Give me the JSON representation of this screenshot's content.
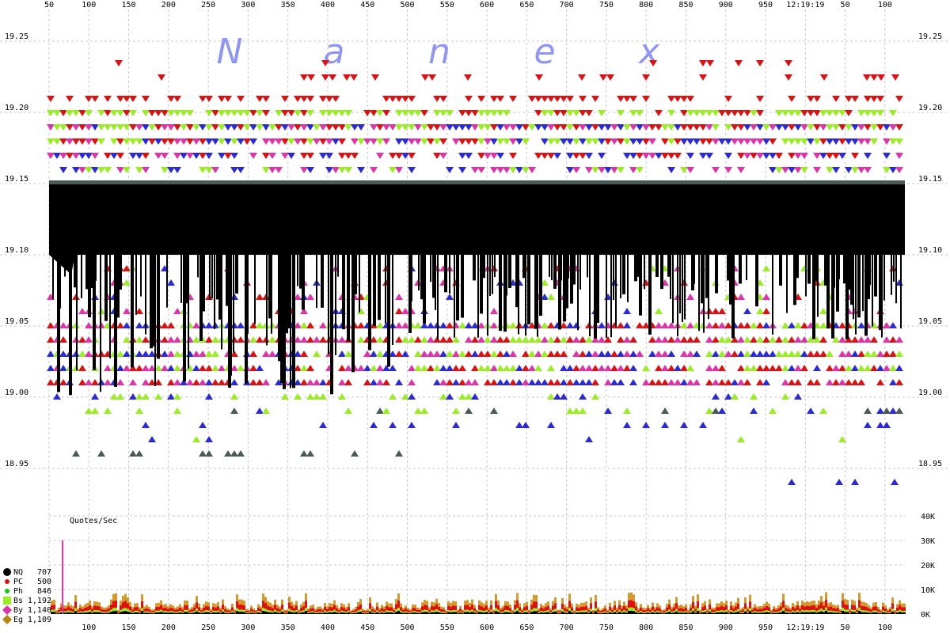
{
  "chart_data": [
    {
      "type": "scatter",
      "title": "",
      "watermark_letters": [
        "N",
        "a",
        "n",
        "e",
        "x"
      ],
      "watermark_color": "#8f95f4",
      "x_tick_labels": [
        "50",
        "100",
        "150",
        "200",
        "250",
        "300",
        "350",
        "400",
        "450",
        "500",
        "550",
        "600",
        "650",
        "700",
        "750",
        "800",
        "850",
        "900",
        "950",
        "12:19:19",
        "50",
        "100"
      ],
      "y_ticks": [
        18.95,
        19.0,
        19.05,
        19.1,
        19.15,
        19.2,
        19.25
      ],
      "y_tick_labels": [
        "18.95",
        "19.00",
        "19.05",
        "19.10",
        "19.15",
        "19.20",
        "19.25"
      ],
      "ylim": [
        18.93,
        19.27
      ],
      "x_range_ms": [
        50,
        1125
      ],
      "grid": true,
      "grid_style": "dashed",
      "marker": "triangle",
      "markers_note": "up-triangles mark bids, down-triangles mark asks",
      "bid_ask_band": {
        "bid_min": 19.1,
        "ask": 19.15,
        "color": "#000000"
      },
      "ask_levels": [
        19.16,
        19.17,
        19.18,
        19.19,
        19.2,
        19.21
      ],
      "bid_levels": [
        19.05,
        19.04,
        19.03,
        19.02,
        19.01,
        19.0,
        18.99,
        18.98,
        18.97,
        18.96
      ],
      "series_colors": {
        "NQ": "#000000",
        "PC": "#dd1111",
        "Ph": "#11cc11",
        "Bs": "#99ee22",
        "By": "#e033aa",
        "Eg": "#b8860b",
        "blue_exchange": "#2a2ad8",
        "gray_exchange": "#4a5a58"
      }
    },
    {
      "type": "bar",
      "title": "Quotes/Sec",
      "y_tick_labels": [
        "0K",
        "10K",
        "20K",
        "30K",
        "40K"
      ],
      "ylim": [
        0,
        40000
      ],
      "x_tick_labels": [
        "100",
        "150",
        "200",
        "250",
        "300",
        "350",
        "400",
        "450",
        "500",
        "550",
        "600",
        "650",
        "700",
        "750",
        "800",
        "850",
        "900",
        "950",
        "12:19:19",
        "50",
        "100"
      ],
      "spike": {
        "x_ms": 66,
        "value": 30000
      },
      "typical_range": [
        1500,
        9000
      ],
      "colors": {
        "base": "#000000",
        "mid": "#e01010",
        "top": "#d49a2c",
        "accent": "#99ee22"
      }
    }
  ],
  "legend": [
    {
      "code": "NQ",
      "count": "707",
      "color": "#000000",
      "shape": "circle"
    },
    {
      "code": "PC",
      "count": "500",
      "color": "#dd1111",
      "shape": "dot"
    },
    {
      "code": "Ph",
      "count": "846",
      "color": "#11cc11",
      "shape": "dot"
    },
    {
      "code": "Bs",
      "count": "1,192",
      "color": "#99ee22",
      "shape": "square"
    },
    {
      "code": "By",
      "count": "1,140",
      "color": "#e033aa",
      "shape": "diamond"
    },
    {
      "code": "Eg",
      "count": "1,109",
      "color": "#b8860b",
      "shape": "diamond"
    }
  ]
}
